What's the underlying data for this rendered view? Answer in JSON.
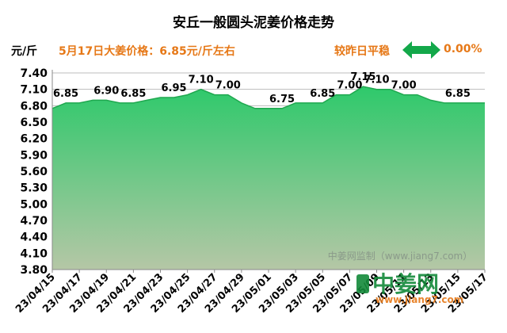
{
  "header": {
    "title": "安丘一般圆头泥姜价格走势",
    "unit": "元/斤",
    "today_price": "5月17日大姜价格：6.85元/斤左右",
    "compare": "较昨日平稳",
    "change_pct": "0.00%"
  },
  "watermark": "中姜网监制（www.jiang7.com）",
  "logo": {
    "text": "中姜网",
    "url": "www.jiang7.com"
  },
  "colors": {
    "accent": "#e67817",
    "fill_top": "#2ec96b",
    "fill_bottom": "#b5c7a6",
    "line": "#1fa84f",
    "arrow": "#13a84a",
    "grid": "#bcbcbc"
  },
  "chart_data": {
    "type": "area",
    "title": "安丘一般圆头泥姜价格走势",
    "ylabel": "元/斤",
    "ylim": [
      3.8,
      7.4
    ],
    "yticks": [
      "7.40",
      "7.10",
      "6.80",
      "6.50",
      "6.20",
      "5.90",
      "5.60",
      "5.30",
      "5.00",
      "4.70",
      "4.40",
      "4.10",
      "3.80"
    ],
    "categories": [
      "23/04/15",
      "23/04/16",
      "23/04/17",
      "23/04/18",
      "23/04/19",
      "23/04/20",
      "23/04/21",
      "23/04/22",
      "23/04/23",
      "23/04/24",
      "23/04/25",
      "23/04/26",
      "23/04/27",
      "23/04/28",
      "23/04/29",
      "23/04/30",
      "23/05/01",
      "23/05/02",
      "23/05/03",
      "23/05/04",
      "23/05/05",
      "23/05/06",
      "23/05/07",
      "23/05/08",
      "23/05/09",
      "23/05/10",
      "23/05/11",
      "23/05/12",
      "23/05/13",
      "23/05/14",
      "23/05/15",
      "23/05/16",
      "23/05/17"
    ],
    "xtick_labels": [
      "23/04/15",
      "23/04/17",
      "23/04/19",
      "23/04/21",
      "23/04/23",
      "23/04/25",
      "23/04/27",
      "23/04/29",
      "23/05/01",
      "23/05/03",
      "23/05/05",
      "23/05/07",
      "23/05/09",
      "23/05/11",
      "23/05/13",
      "23/05/15",
      "23/05/17"
    ],
    "values": [
      6.75,
      6.85,
      6.85,
      6.9,
      6.9,
      6.85,
      6.85,
      6.9,
      6.95,
      6.95,
      7.0,
      7.1,
      7.0,
      7.0,
      6.85,
      6.75,
      6.75,
      6.75,
      6.85,
      6.85,
      6.85,
      7.0,
      7.0,
      7.15,
      7.1,
      7.1,
      7.0,
      7.0,
      6.9,
      6.85,
      6.85,
      6.85,
      6.85
    ],
    "data_labels": [
      {
        "index": 1,
        "text": "6.85"
      },
      {
        "index": 4,
        "text": "6.90"
      },
      {
        "index": 6,
        "text": "6.85"
      },
      {
        "index": 9,
        "text": "6.95"
      },
      {
        "index": 11,
        "text": "7.10"
      },
      {
        "index": 13,
        "text": "7.00"
      },
      {
        "index": 17,
        "text": "6.75"
      },
      {
        "index": 20,
        "text": "6.85"
      },
      {
        "index": 22,
        "text": "7.00"
      },
      {
        "index": 23,
        "text": "7.15"
      },
      {
        "index": 24,
        "text": "7.10"
      },
      {
        "index": 26,
        "text": "7.00"
      },
      {
        "index": 30,
        "text": "6.85"
      }
    ],
    "grid": true
  }
}
